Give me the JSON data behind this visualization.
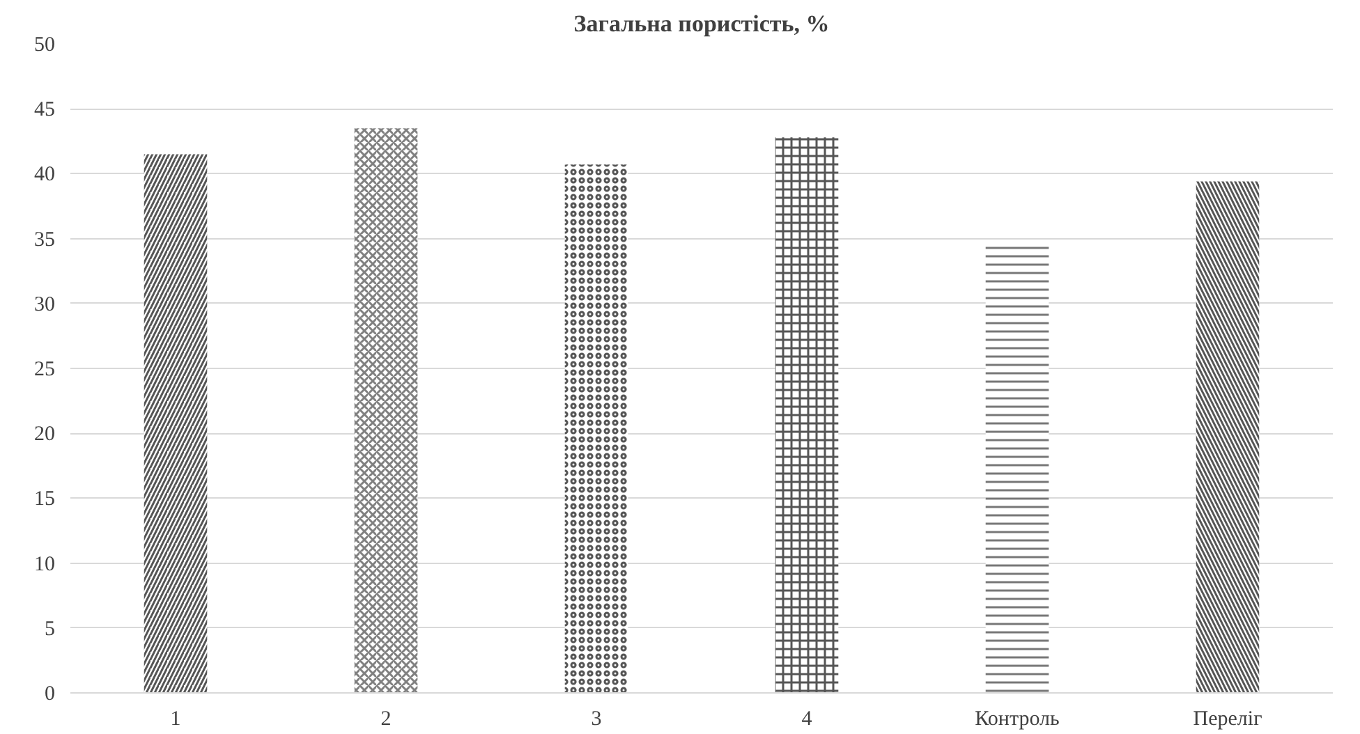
{
  "chart_data": {
    "type": "bar",
    "title": "Загальна пористість, %",
    "categories": [
      "1",
      "2",
      "3",
      "4",
      "Контроль",
      "Переліг"
    ],
    "values": [
      41.5,
      43.5,
      40.7,
      42.8,
      34.4,
      39.4
    ],
    "colors": [
      "#555555",
      "#808080",
      "#555555",
      "#555555",
      "#777777",
      "#555555"
    ],
    "ylim": [
      0,
      50
    ],
    "yticks": [
      0,
      5,
      10,
      15,
      20,
      25,
      30,
      35,
      40,
      45,
      50
    ],
    "grid": "y"
  }
}
